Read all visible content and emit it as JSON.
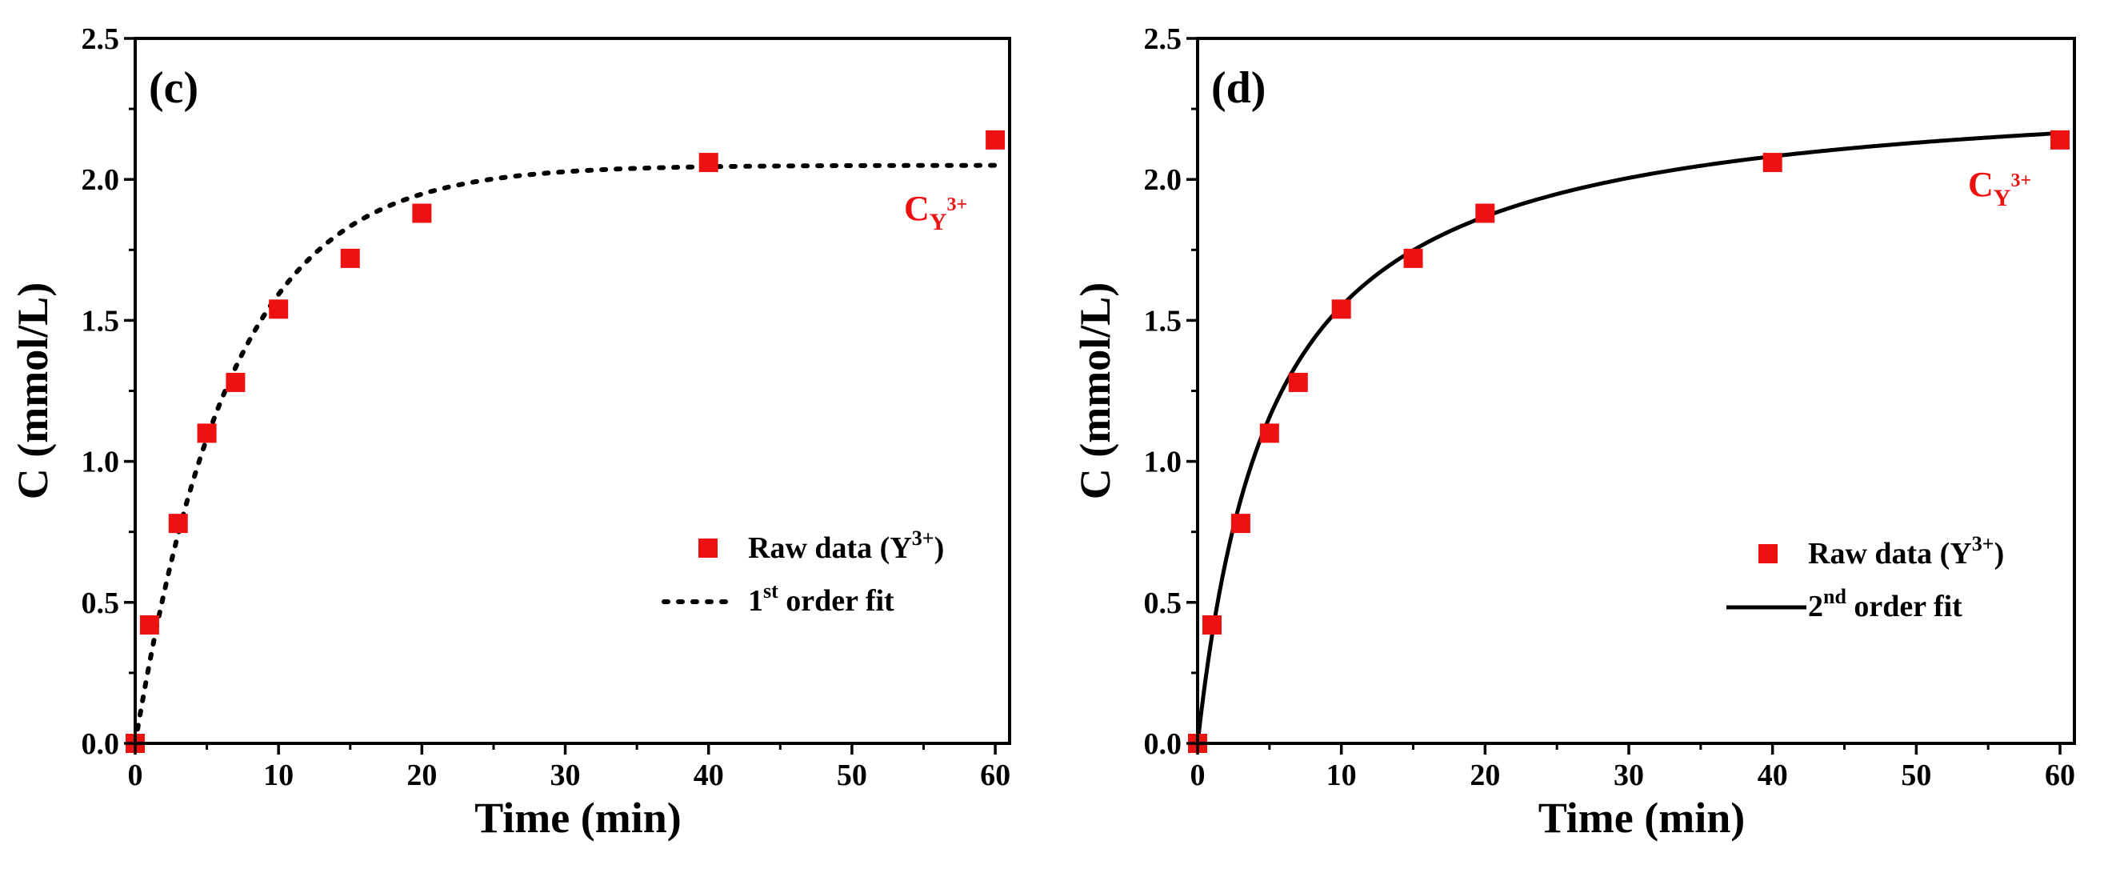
{
  "chart_data": [
    {
      "type": "scatter",
      "panel_label": "(c)",
      "xlabel": "Time (min)",
      "ylabel": "C (mmol/L)",
      "xlim": [
        0,
        61
      ],
      "ylim": [
        0,
        2.5
      ],
      "xticks": [
        0,
        10,
        20,
        30,
        40,
        50,
        60
      ],
      "yticks": [
        0.0,
        0.5,
        1.0,
        1.5,
        2.0,
        2.5
      ],
      "xtick_labels": [
        "0",
        "10",
        "20",
        "30",
        "40",
        "50",
        "60"
      ],
      "ytick_labels": [
        "0.0",
        "0.5",
        "1.0",
        "1.5",
        "2.0",
        "2.5"
      ],
      "series": [
        {
          "name": "Raw data (Y3+)",
          "style": "square-markers",
          "color": "#ee1111",
          "x": [
            0,
            1,
            3,
            5,
            7,
            10,
            15,
            20,
            40,
            60
          ],
          "y": [
            0.0,
            0.42,
            0.78,
            1.1,
            1.28,
            1.54,
            1.72,
            1.88,
            2.06,
            2.14
          ]
        },
        {
          "name": "1st order fit",
          "style": "dotted-line",
          "color": "#000000",
          "model": "first-order",
          "params": {
            "qe": 2.05,
            "k1": 0.15
          }
        }
      ],
      "legend": [
        {
          "main": "Raw data (Y",
          "sup": "3+",
          "tail": ")"
        },
        {
          "main": "1",
          "sup": "st",
          "tail": " order fit"
        }
      ],
      "annotation": {
        "base": "C",
        "sub": "Y",
        "sup": "3+",
        "color": "#ee1111"
      }
    },
    {
      "type": "scatter",
      "panel_label": "(d)",
      "xlabel": "Time (min)",
      "ylabel": "C (mmol/L)",
      "xlim": [
        0,
        61
      ],
      "ylim": [
        0,
        2.5
      ],
      "xticks": [
        0,
        10,
        20,
        30,
        40,
        50,
        60
      ],
      "yticks": [
        0.0,
        0.5,
        1.0,
        1.5,
        2.0,
        2.5
      ],
      "xtick_labels": [
        "0",
        "10",
        "20",
        "30",
        "40",
        "50",
        "60"
      ],
      "ytick_labels": [
        "0.0",
        "0.5",
        "1.0",
        "1.5",
        "2.0",
        "2.5"
      ],
      "series": [
        {
          "name": "Raw data (Y3+)",
          "style": "square-markers",
          "color": "#ee1111",
          "x": [
            0,
            1,
            3,
            5,
            7,
            10,
            15,
            20,
            40,
            60
          ],
          "y": [
            0.0,
            0.42,
            0.78,
            1.1,
            1.28,
            1.54,
            1.72,
            1.88,
            2.06,
            2.14
          ]
        },
        {
          "name": "2nd order fit",
          "style": "solid-line",
          "color": "#000000",
          "model": "second-order",
          "params": {
            "qe": 2.35,
            "k2": 0.0825
          }
        }
      ],
      "legend": [
        {
          "main": "Raw data (Y",
          "sup": "3+",
          "tail": ")"
        },
        {
          "main": "2",
          "sup": "nd",
          "tail": " order fit"
        }
      ],
      "annotation": {
        "base": "C",
        "sub": "Y",
        "sup": "3+",
        "color": "#ee1111"
      }
    }
  ]
}
